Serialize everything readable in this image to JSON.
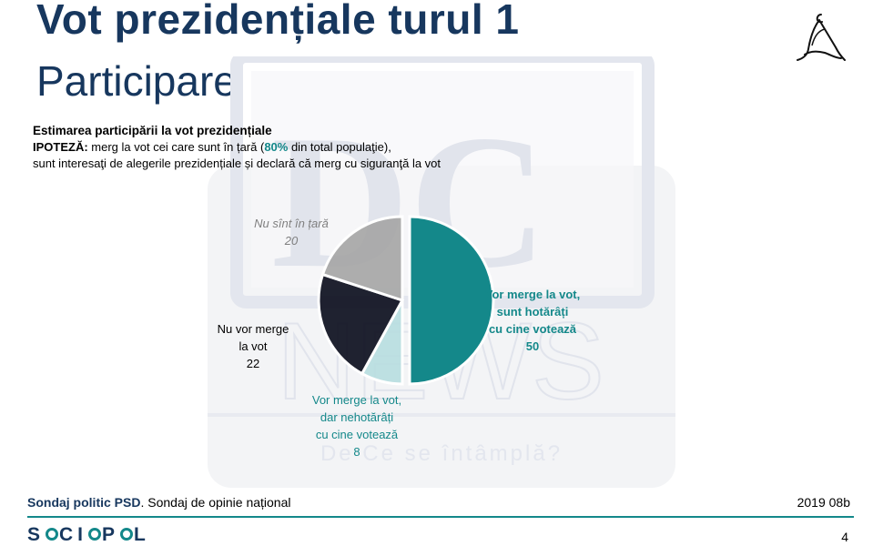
{
  "header": {
    "title": "Vot prezidențiale turul 1",
    "subtitle": "Participare"
  },
  "intro": {
    "heading": "Estimarea participării la vot prezidențiale",
    "hypothesis_label": "IPOTEZĂ:",
    "line1_a": " merg la vot cei care sunt în țară (",
    "line1_pct": "80%",
    "line1_b": " din total populaţie),",
    "line2": "sunt interesaţi de alegerile prezidențiale și declară că merg cu siguranţă la vot"
  },
  "watermark": {
    "tagline": "De Ce se întâmplă?"
  },
  "chart_data": {
    "type": "pie",
    "title": "",
    "slices": [
      {
        "label_lines": [
          "Vor merge la vot,",
          "sunt hotărâți",
          "cu cine votează"
        ],
        "value": 50,
        "color": "#14888a",
        "label_color": "#14888a",
        "label_style": "bold"
      },
      {
        "label_lines": [
          "Vor merge la vot,",
          "dar nehotărâți",
          "cu cine votează"
        ],
        "value": 8,
        "color": "#b8dde0",
        "label_color": "#14888a",
        "label_style": "normal"
      },
      {
        "label_lines": [
          "Nu vor merge",
          "la vot"
        ],
        "value": 22,
        "color": "#0d0f1e",
        "label_color": "#000000",
        "label_style": "normal"
      },
      {
        "label_lines": [
          "Nu sînt în țară"
        ],
        "value": 20,
        "color": "#a6a6a6",
        "label_color": "#7f7f7f",
        "label_style": "italic"
      }
    ]
  },
  "footer": {
    "survey_bold": "Sondaj politic PSD",
    "survey_rest": ". Sondaj de opinie național",
    "code": "2019 08b",
    "brand_parts": [
      "S",
      "CI",
      "P",
      "L"
    ],
    "page": "4"
  },
  "colors": {
    "title": "#17375e",
    "accent": "#14888a"
  }
}
